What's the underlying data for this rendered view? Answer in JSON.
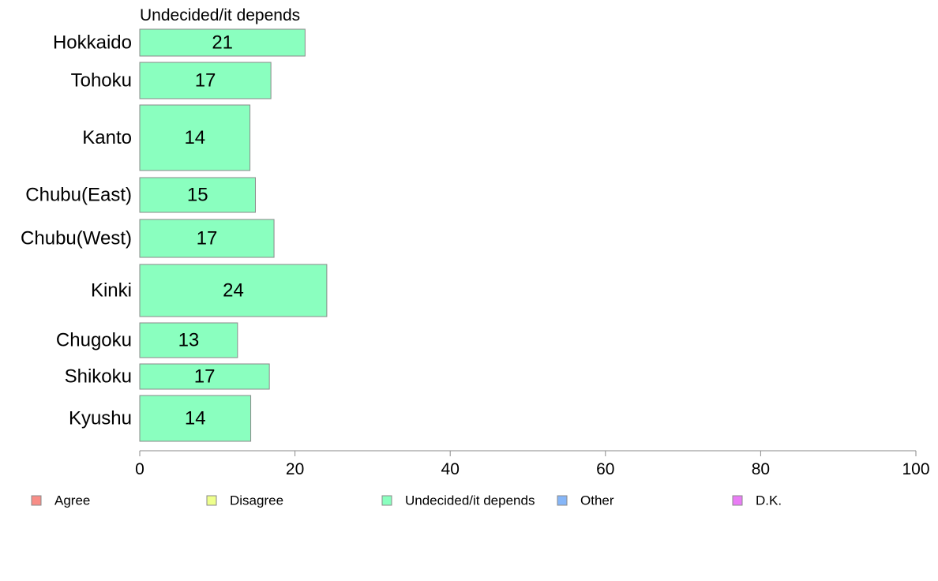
{
  "chart_data": {
    "type": "bar",
    "orientation": "horizontal",
    "title": "Undecided/it depends",
    "categories": [
      "Hokkaido",
      "Tohoku",
      "Kanto",
      "Chubu(East)",
      "Chubu(West)",
      "Kinki",
      "Chugoku",
      "Shikoku",
      "Kyushu"
    ],
    "series": [
      {
        "name": "Undecided/it depends",
        "values": [
          21.3,
          16.9,
          14.2,
          14.9,
          17.3,
          24.1,
          12.6,
          16.7,
          14.3
        ],
        "data_labels": [
          "21",
          "17",
          "14",
          "15",
          "17",
          "24",
          "13",
          "17",
          "14"
        ],
        "color": "#8affbf"
      }
    ],
    "xlim": [
      0,
      100
    ],
    "xticks": [
      0,
      20,
      40,
      60,
      80,
      100
    ],
    "xlabel": "",
    "ylabel": "",
    "grid": false,
    "legend": {
      "position": "bottom",
      "entries": [
        {
          "label": "Agree",
          "color": "#f88d87"
        },
        {
          "label": "Disagree",
          "color": "#eeff8c"
        },
        {
          "label": "Undecided/it depends",
          "color": "#8affbf"
        },
        {
          "label": "Other",
          "color": "#86b6f8"
        },
        {
          "label": "D.K.",
          "color": "#e97cf5"
        }
      ]
    }
  }
}
